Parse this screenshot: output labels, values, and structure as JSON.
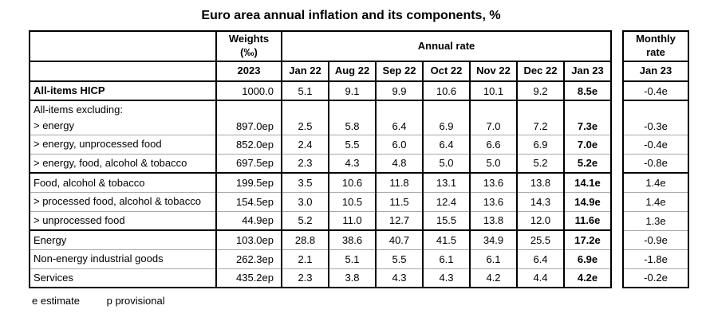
{
  "title": "Euro area annual inflation and its components, %",
  "main_table": {
    "weights_header": "Weights\n(‰)",
    "weights_year": "2023",
    "annual_rate_header": "Annual rate",
    "months": [
      "Jan 22",
      "Aug 22",
      "Sep 22",
      "Oct 22",
      "Nov 22",
      "Dec 22",
      "Jan 23"
    ]
  },
  "monthly_table": {
    "header": "Monthly\nrate",
    "period": "Jan 23"
  },
  "rows": [
    {
      "label": "All-items HICP",
      "bold_label": true,
      "weight": "1000.0",
      "values": [
        "5.1",
        "9.1",
        "9.9",
        "10.6",
        "10.1",
        "9.2",
        "8.5e"
      ],
      "monthly": "-0.4e",
      "group_start_main": true,
      "group_start_monthly": true
    },
    {
      "label": "All-items excluding:\n> energy",
      "double": true,
      "weight": "897.0ep",
      "values": [
        "2.5",
        "5.8",
        "6.4",
        "6.9",
        "7.0",
        "7.2",
        "7.3e"
      ],
      "monthly": "-0.3e",
      "group_start_main": true,
      "group_start_monthly": true
    },
    {
      "label": "> energy, unprocessed food",
      "weight": "852.0ep",
      "values": [
        "2.4",
        "5.5",
        "6.0",
        "6.4",
        "6.6",
        "6.9",
        "7.0e"
      ],
      "monthly": "-0.4e"
    },
    {
      "label": "> energy, food, alcohol & tobacco",
      "weight": "697.5ep",
      "values": [
        "2.3",
        "4.3",
        "4.8",
        "5.0",
        "5.0",
        "5.2",
        "5.2e"
      ],
      "monthly": "-0.8e"
    },
    {
      "label": "Food, alcohol & tobacco",
      "weight": "199.5ep",
      "values": [
        "3.5",
        "10.6",
        "11.8",
        "13.1",
        "13.6",
        "13.8",
        "14.1e"
      ],
      "monthly": "1.4e",
      "group_start_main": true,
      "group_start_monthly": true
    },
    {
      "label": "> processed food, alcohol & tobacco",
      "weight": "154.5ep",
      "values": [
        "3.0",
        "10.5",
        "11.5",
        "12.4",
        "13.6",
        "14.3",
        "14.9e"
      ],
      "monthly": "1.4e"
    },
    {
      "label": "> unprocessed food",
      "weight": "44.9ep",
      "values": [
        "5.2",
        "11.0",
        "12.7",
        "15.5",
        "13.8",
        "12.0",
        "11.6e"
      ],
      "monthly": "1.3e"
    },
    {
      "label": "Energy",
      "weight": "103.0ep",
      "values": [
        "28.8",
        "38.6",
        "40.7",
        "41.5",
        "34.9",
        "25.5",
        "17.2e"
      ],
      "monthly": "-0.9e",
      "group_start_main": true
    },
    {
      "label": "Non-energy industrial goods",
      "weight": "262.3ep",
      "values": [
        "2.1",
        "5.1",
        "5.5",
        "6.1",
        "6.1",
        "6.4",
        "6.9e"
      ],
      "monthly": "-1.8e"
    },
    {
      "label": "Services",
      "weight": "435.2ep",
      "values": [
        "2.3",
        "3.8",
        "4.3",
        "4.3",
        "4.2",
        "4.4",
        "4.2e"
      ],
      "monthly": "-0.2e"
    }
  ],
  "footnote": {
    "estimate": "e estimate",
    "provisional": "p provisional"
  },
  "colors": {
    "border": "#000000",
    "grid_line": "#a8a8a8",
    "text": "#000000",
    "background": "#ffffff"
  }
}
